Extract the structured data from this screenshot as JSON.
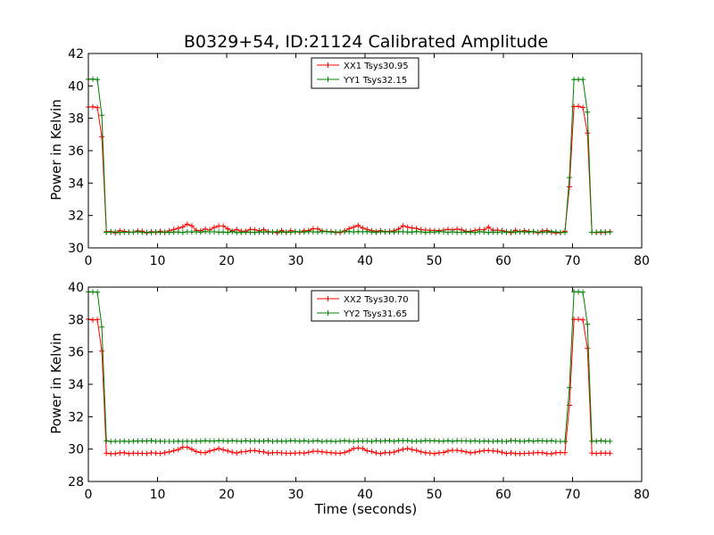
{
  "title": "B0329+54, ID:21124 Calibrated Amplitude",
  "chart_data": [
    {
      "type": "line",
      "ylabel": "Power in Kelvin",
      "xlabel": "",
      "xlim": [
        0,
        80
      ],
      "ylim": [
        30,
        42
      ],
      "xticks": [
        "0",
        "10",
        "20",
        "30",
        "40",
        "50",
        "60",
        "70",
        "80"
      ],
      "yticks": [
        "30",
        "32",
        "34",
        "36",
        "38",
        "40",
        "42"
      ],
      "legend_position": "upper-center",
      "series": [
        {
          "name": "XX1 Tsys30.95",
          "color": "#ff0000",
          "high": 38.7,
          "low": 31.0,
          "noise": 0.18,
          "bumps": [
            [
              14,
              0.4
            ],
            [
              19,
              0.35
            ],
            [
              24,
              0.15
            ],
            [
              33,
              0.15
            ],
            [
              39,
              0.3
            ],
            [
              46,
              0.35
            ],
            [
              53,
              0.2
            ],
            [
              58,
              0.2
            ]
          ]
        },
        {
          "name": "YY1 Tsys32.15",
          "color": "#008000",
          "high": 40.4,
          "low": 30.98,
          "noise": 0.06,
          "bumps": []
        }
      ]
    },
    {
      "type": "line",
      "ylabel": "Power in Kelvin",
      "xlabel": "Time (seconds)",
      "xlim": [
        0,
        80
      ],
      "ylim": [
        28,
        40
      ],
      "xticks": [
        "0",
        "10",
        "20",
        "30",
        "40",
        "50",
        "60",
        "70",
        "80"
      ],
      "yticks": [
        "28",
        "30",
        "32",
        "34",
        "36",
        "38",
        "40"
      ],
      "legend_position": "upper-center",
      "series": [
        {
          "name": "XX2 Tsys30.70",
          "color": "#ff0000",
          "high": 38.0,
          "low": 29.75,
          "noise": 0.08,
          "bumps": [
            [
              14,
              0.35
            ],
            [
              19,
              0.25
            ],
            [
              24,
              0.15
            ],
            [
              33,
              0.1
            ],
            [
              39,
              0.3
            ],
            [
              46,
              0.3
            ],
            [
              53,
              0.2
            ],
            [
              58,
              0.2
            ]
          ]
        },
        {
          "name": "YY2 Tsys31.65",
          "color": "#008000",
          "high": 39.7,
          "low": 30.5,
          "noise": 0.06,
          "bumps": []
        }
      ]
    }
  ]
}
